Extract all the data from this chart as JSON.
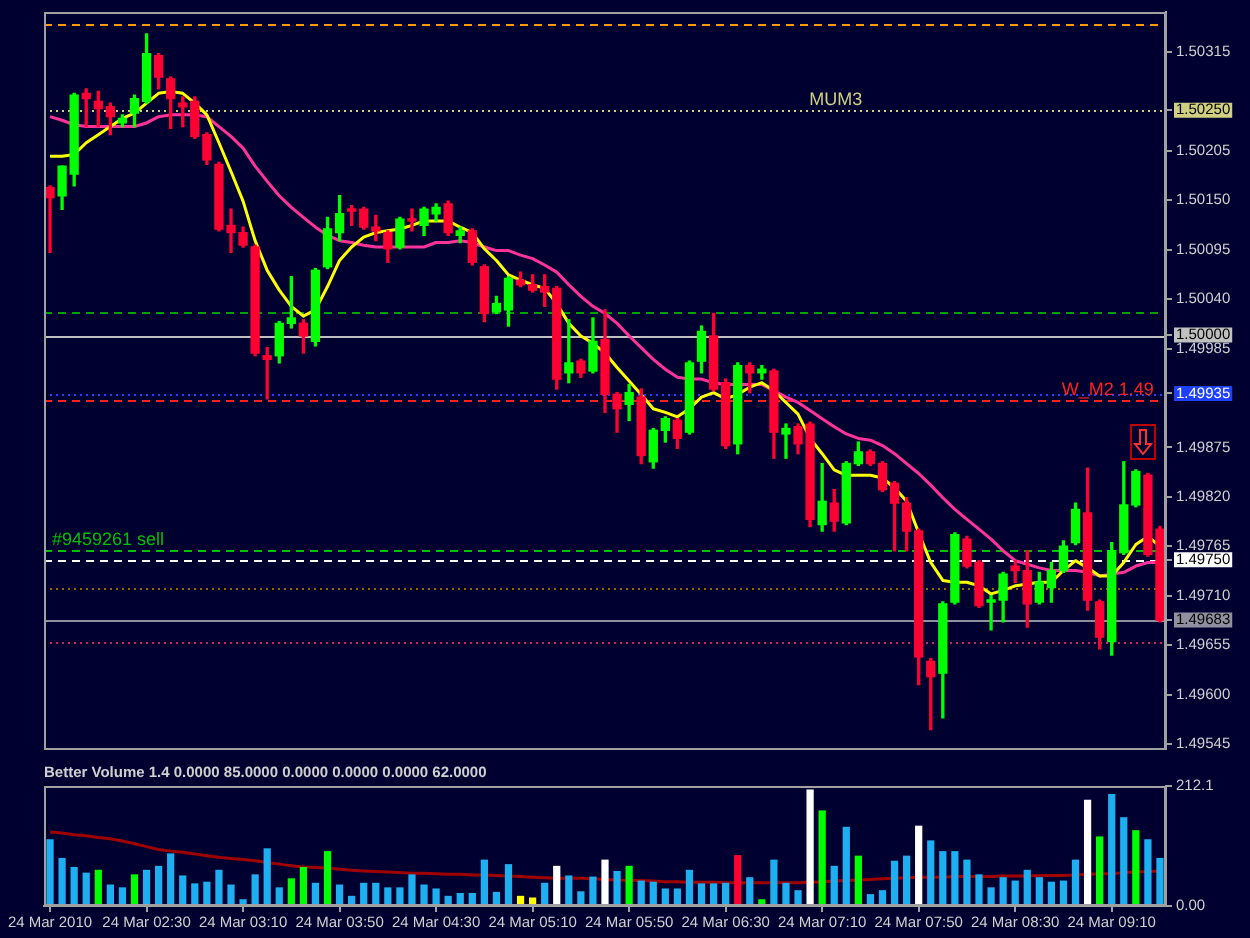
{
  "chart_data": [
    {
      "type": "candlestick",
      "categories": [
        null,
        null,
        null,
        null,
        null,
        null,
        null,
        null,
        null,
        null,
        null,
        null,
        null,
        null,
        null,
        null,
        null,
        null,
        null,
        null,
        null,
        null,
        null,
        null,
        null,
        null,
        null,
        null,
        null,
        null,
        null,
        null,
        null,
        null,
        null,
        null,
        null,
        null,
        null,
        null,
        null,
        null,
        null,
        null,
        null,
        null,
        null,
        null,
        null,
        null,
        null,
        null,
        null,
        null,
        null,
        null,
        null,
        null,
        null,
        null,
        null,
        null,
        null,
        null,
        null,
        null,
        null,
        null,
        null,
        null,
        null,
        null,
        null,
        null,
        null,
        null,
        null,
        null,
        null,
        null,
        null,
        null,
        null,
        null,
        null,
        null,
        null,
        null,
        null,
        null,
        null,
        null,
        null
      ],
      "ohlc": [
        [
          1.50164,
          1.50166,
          1.50092,
          1.50153
        ],
        [
          1.50155,
          1.50188,
          1.5014,
          1.50188
        ],
        [
          1.50179,
          1.50269,
          1.50166,
          1.50267
        ],
        [
          1.50269,
          1.50274,
          1.50232,
          1.50263
        ],
        [
          1.5026,
          1.50271,
          1.50232,
          1.50252
        ],
        [
          1.50254,
          1.50258,
          1.50223,
          1.50243
        ],
        [
          1.50236,
          1.50245,
          1.50232,
          1.50241
        ],
        [
          1.50247,
          1.50267,
          1.50232,
          1.50263
        ],
        [
          1.5026,
          1.50335,
          1.50258,
          1.50313
        ],
        [
          1.50311,
          1.50313,
          1.50274,
          1.50287
        ],
        [
          1.50285,
          1.50287,
          1.5023,
          1.50263
        ],
        [
          1.50258,
          1.50265,
          1.50232,
          1.50254
        ],
        [
          1.5026,
          1.50265,
          1.50219,
          1.50221
        ],
        [
          1.50223,
          1.50225,
          1.5019,
          1.50195
        ],
        [
          1.5019,
          1.50192,
          1.50116,
          1.50118
        ],
        [
          1.50122,
          1.5014,
          1.50092,
          1.50114
        ],
        [
          1.50114,
          1.5012,
          1.50098,
          1.501
        ],
        [
          1.50098,
          1.501,
          1.49977,
          1.4998
        ],
        [
          1.49977,
          1.49986,
          1.49929,
          1.49973
        ],
        [
          1.49977,
          1.50015,
          1.49969,
          1.50013
        ],
        [
          1.50013,
          1.50065,
          1.50008,
          1.50019
        ],
        [
          1.50013,
          1.50017,
          1.4998,
          1.49999
        ],
        [
          1.49993,
          1.50074,
          1.49988,
          1.50072
        ],
        [
          1.50076,
          1.50131,
          1.50074,
          1.50118
        ],
        [
          1.50114,
          1.50155,
          1.50105,
          1.50135
        ],
        [
          1.5014,
          1.50144,
          1.50122,
          1.50138
        ],
        [
          1.5014,
          1.50142,
          1.50118,
          1.5012
        ],
        [
          1.5012,
          1.50133,
          1.50105,
          1.50116
        ],
        [
          1.50114,
          1.50116,
          1.50081,
          1.50096
        ],
        [
          1.50098,
          1.50131,
          1.50096,
          1.50129
        ],
        [
          1.50129,
          1.5014,
          1.50116,
          1.50127
        ],
        [
          1.50122,
          1.50142,
          1.50111,
          1.5014
        ],
        [
          1.50135,
          1.50146,
          1.50127,
          1.50142
        ],
        [
          1.50146,
          1.50149,
          1.50111,
          1.50114
        ],
        [
          1.50111,
          1.5012,
          1.50103,
          1.50116
        ],
        [
          1.50116,
          1.50118,
          1.50078,
          1.50081
        ],
        [
          1.50076,
          1.50078,
          1.50015,
          1.50024
        ],
        [
          1.50026,
          1.50043,
          1.50024,
          1.50035
        ],
        [
          1.50028,
          1.50065,
          1.5001,
          1.50063
        ],
        [
          1.50061,
          1.5007,
          1.50054,
          1.50056
        ],
        [
          1.50056,
          1.50067,
          1.50048,
          1.5005
        ],
        [
          1.50054,
          1.50067,
          1.50032,
          1.50048
        ],
        [
          1.50052,
          1.50054,
          1.4994,
          1.49951
        ],
        [
          1.49958,
          1.50017,
          1.49947,
          1.49969
        ],
        [
          1.49971,
          1.49973,
          1.49953,
          1.49958
        ],
        [
          1.4996,
          1.50019,
          1.49958,
          1.49993
        ],
        [
          1.49995,
          1.50028,
          1.49914,
          1.49934
        ],
        [
          1.49934,
          1.49936,
          1.49892,
          1.49918
        ],
        [
          1.49923,
          1.49945,
          1.49905,
          1.49936
        ],
        [
          1.49931,
          1.4994,
          1.49857,
          1.49866
        ],
        [
          1.49859,
          1.49896,
          1.49852,
          1.49894
        ],
        [
          1.49894,
          1.49909,
          1.49881,
          1.49907
        ],
        [
          1.49905,
          1.49907,
          1.49874,
          1.49885
        ],
        [
          1.49892,
          1.49971,
          1.4989,
          1.49969
        ],
        [
          1.49971,
          1.5001,
          1.49958,
          1.50004
        ],
        [
          1.49999,
          1.50024,
          1.49938,
          1.4994
        ],
        [
          1.49947,
          1.49951,
          1.49874,
          1.49877
        ],
        [
          1.49879,
          1.49969,
          1.49868,
          1.49966
        ],
        [
          1.49966,
          1.49969,
          1.49936,
          1.49958
        ],
        [
          1.49958,
          1.49966,
          1.49951,
          1.49962
        ],
        [
          1.4996,
          1.49962,
          1.49863,
          1.49892
        ],
        [
          1.4989,
          1.49901,
          1.49863,
          1.49896
        ],
        [
          1.49898,
          1.49901,
          1.49868,
          1.49879
        ],
        [
          1.49901,
          1.49903,
          1.49787,
          1.49795
        ],
        [
          1.49789,
          1.49857,
          1.49782,
          1.49815
        ],
        [
          1.49813,
          1.49828,
          1.49782,
          1.49793
        ],
        [
          1.49791,
          1.49859,
          1.49789,
          1.49857
        ],
        [
          1.49857,
          1.49881,
          1.49855,
          1.4987
        ],
        [
          1.4987,
          1.49872,
          1.49855,
          1.49857
        ],
        [
          1.49857,
          1.49859,
          1.49826,
          1.49828
        ],
        [
          1.49835,
          1.49837,
          1.4976,
          1.49813
        ],
        [
          1.49813,
          1.49819,
          1.4976,
          1.49782
        ],
        [
          1.49782,
          1.49784,
          1.49611,
          1.49642
        ],
        [
          1.49637,
          1.4964,
          1.49561,
          1.4962
        ],
        [
          1.49624,
          1.49703,
          1.49574,
          1.49701
        ],
        [
          1.49703,
          1.4978,
          1.49701,
          1.49778
        ],
        [
          1.49773,
          1.49776,
          1.49741,
          1.49743
        ],
        [
          1.49747,
          1.49749,
          1.49697,
          1.49699
        ],
        [
          1.49703,
          1.4971,
          1.49672,
          1.49705
        ],
        [
          1.49705,
          1.49736,
          1.49681,
          1.49734
        ],
        [
          1.49743,
          1.49749,
          1.49725,
          1.49738
        ],
        [
          1.49738,
          1.4976,
          1.49675,
          1.49701
        ],
        [
          1.49703,
          1.49736,
          1.49701,
          1.49725
        ],
        [
          1.49719,
          1.49747,
          1.49703,
          1.49738
        ],
        [
          1.49738,
          1.49771,
          1.49736,
          1.49765
        ],
        [
          1.49769,
          1.49813,
          1.49767,
          1.49806
        ],
        [
          1.49802,
          1.49852,
          1.49694,
          1.49705
        ],
        [
          1.49703,
          1.49705,
          1.49651,
          1.49664
        ],
        [
          1.49659,
          1.49769,
          1.49644,
          1.4976
        ],
        [
          1.49758,
          1.49859,
          1.49756,
          1.49811
        ],
        [
          1.49811,
          1.4985,
          1.49809,
          1.49848
        ],
        [
          1.49844,
          1.49846,
          1.49754,
          1.49756
        ],
        [
          1.49784,
          1.49787,
          1.49681,
          1.49683
        ]
      ],
      "colors": [
        "#ff0033",
        "#00ff00",
        "#00ff00",
        "#ff0033",
        "#ff0033",
        "#ff0033",
        "#00ff00",
        "#00ff00",
        "#00ff00",
        "#ff0033",
        "#ff0033",
        "#ff0033",
        "#ff0033",
        "#ff0033",
        "#ff0033",
        "#ff0033",
        "#ff0033",
        "#ff0033",
        "#ff0033",
        "#00ff00",
        "#00ff00",
        "#ff0033",
        "#00ff00",
        "#00ff00",
        "#00ff00",
        "#ff0033",
        "#ff0033",
        "#ff0033",
        "#ff0033",
        "#00ff00",
        "#ff0033",
        "#00ff00",
        "#00ff00",
        "#ff0033",
        "#00ff00",
        "#ff0033",
        "#ff0033",
        "#00ff00",
        "#00ff00",
        "#ff0033",
        "#ff0033",
        "#ff0033",
        "#ff0033",
        "#00ff00",
        "#ff0033",
        "#00ff00",
        "#ff0033",
        "#ff0033",
        "#00ff00",
        "#ff0033",
        "#00ff00",
        "#00ff00",
        "#ff0033",
        "#00ff00",
        "#00ff00",
        "#ff0033",
        "#ff0033",
        "#00ff00",
        "#ff0033",
        "#00ff00",
        "#ff0033",
        "#00ff00",
        "#ff0033",
        "#ff0033",
        "#00ff00",
        "#ff0033",
        "#00ff00",
        "#00ff00",
        "#ff0033",
        "#ff0033",
        "#ff0033",
        "#ff0033",
        "#ff0033",
        "#ff0033",
        "#00ff00",
        "#00ff00",
        "#ff0033",
        "#ff0033",
        "#00ff00",
        "#00ff00",
        "#ff0033",
        "#ff0033",
        "#00ff00",
        "#00ff00",
        "#00ff00",
        "#00ff00",
        "#ff0033",
        "#ff0033",
        "#00ff00",
        "#00ff00",
        "#00ff00",
        "#ff0033",
        "#ff0033"
      ],
      "series": [
        {
          "type": "line",
          "color": "#ffff00",
          "values": [
            1.50199,
            1.50199,
            1.50201,
            1.50214,
            1.50223,
            1.50232,
            1.50241,
            1.50247,
            1.50258,
            1.50269,
            1.50271,
            1.50269,
            1.50258,
            1.50245,
            1.50214,
            1.50182,
            1.50149,
            1.50105,
            1.50072,
            1.5005,
            1.50032,
            1.50021,
            1.50028,
            1.50054,
            1.50083,
            1.50098,
            1.50109,
            1.50114,
            1.50116,
            1.50118,
            1.50122,
            1.50127,
            1.50127,
            1.50127,
            1.5012,
            1.50114,
            1.50096,
            1.50083,
            1.50067,
            1.50061,
            1.50056,
            1.50052,
            1.50035,
            1.50013,
            1.49999,
            1.49991,
            1.4998,
            1.49964,
            1.49949,
            1.49934,
            1.49918,
            1.49914,
            1.49909,
            1.49918,
            1.49931,
            1.49936,
            1.49929,
            1.49934,
            1.49942,
            1.49947,
            1.49938,
            1.49925,
            1.49912,
            1.49885,
            1.49868,
            1.4985,
            1.49844,
            1.49844,
            1.49844,
            1.49841,
            1.4983,
            1.49815,
            1.4978,
            1.49747,
            1.49727,
            1.49725,
            1.49725,
            1.49721,
            1.49712,
            1.49716,
            1.49721,
            1.49723,
            1.49725,
            1.49725,
            1.49738,
            1.49749,
            1.49741,
            1.49732,
            1.49732,
            1.49747,
            1.49767,
            1.49776,
            1.49765
          ]
        },
        {
          "type": "line",
          "color": "#ff3399",
          "values": [
            1.50243,
            1.50239,
            1.50234,
            1.50232,
            1.50232,
            1.50232,
            1.50232,
            1.50232,
            1.50236,
            1.50243,
            1.50245,
            1.50245,
            1.50245,
            1.50243,
            1.50232,
            1.50221,
            1.50208,
            1.50188,
            1.50171,
            1.50155,
            1.50142,
            1.50131,
            1.5012,
            1.50111,
            1.50105,
            1.50103,
            1.501,
            1.50098,
            1.50098,
            1.50098,
            1.50098,
            1.50098,
            1.50103,
            1.50103,
            1.50105,
            1.50103,
            1.50098,
            1.50094,
            1.50094,
            1.50089,
            1.50085,
            1.50078,
            1.5007,
            1.50056,
            1.50043,
            1.50032,
            1.50024,
            1.50013,
            1.49999,
            1.49986,
            1.49973,
            1.49962,
            1.49953,
            1.49951,
            1.49951,
            1.49947,
            1.49945,
            1.49945,
            1.49945,
            1.49945,
            1.49938,
            1.49931,
            1.49925,
            1.49916,
            1.49907,
            1.49898,
            1.4989,
            1.49885,
            1.49883,
            1.49877,
            1.49868,
            1.49857,
            1.49846,
            1.49833,
            1.49819,
            1.49806,
            1.49795,
            1.49784,
            1.49773,
            1.4976,
            1.49749,
            1.49745,
            1.49741,
            1.49738,
            1.49738,
            1.49738,
            1.49736,
            1.49732,
            1.49734,
            1.49736,
            1.49743,
            1.49747,
            1.49747
          ]
        }
      ],
      "ylim": [
        1.4954,
        1.5036
      ],
      "yticks": [
        1.50315,
        {
          "value": 1.5025,
          "label": "1.50250"
        },
        1.50205,
        {
          "value": 1.5015,
          "label": "1.50150"
        },
        1.50095,
        {
          "value": 1.5004,
          "label": "1.50040"
        },
        {
          "value": 1.5,
          "label": "1.50000"
        },
        1.49985,
        1.49935,
        1.49875,
        {
          "value": 1.4982,
          "label": "1.49820"
        },
        1.49765,
        {
          "value": 1.4975,
          "label": "1.49750"
        },
        {
          "value": 1.4971,
          "label": "1.49710"
        },
        1.49683,
        1.49655,
        {
          "value": 1.496,
          "label": "1.49600"
        },
        1.49545
      ],
      "ref_lines": [
        {
          "axis": "y",
          "value": 1.50345,
          "color": "#ff9900",
          "line_style": "dashed"
        },
        {
          "axis": "y",
          "value": 1.5025,
          "label": "MUM3",
          "color": "#d0d080",
          "line_style": "dotted"
        },
        {
          "axis": "y",
          "value": 1.50025,
          "color": "#00a000",
          "line_style": "dashed"
        },
        {
          "axis": "y",
          "value": 1.5,
          "color": "#c0c0c0",
          "line_style": "solid"
        },
        {
          "axis": "y",
          "value": 1.49935,
          "color": "#2040ff",
          "line_style": "dotted"
        },
        {
          "axis": "y",
          "value": 1.49928,
          "label": "W_M2 1.49",
          "color": "#ff2020",
          "line_style": "dashed"
        },
        {
          "axis": "y",
          "value": 1.49761,
          "label": "#9459261 sell",
          "color": "#00c000",
          "line_style": "dashed"
        },
        {
          "axis": "y",
          "value": 1.4975,
          "color": "#ffffff",
          "line_style": "dashed"
        },
        {
          "axis": "y",
          "value": 1.49719,
          "color": "#a06400",
          "line_style": "dotted"
        },
        {
          "axis": "y",
          "value": 1.49683,
          "color": "#9090a0",
          "line_style": "solid"
        },
        {
          "axis": "y",
          "value": 1.49659,
          "color": "#d02060",
          "line_style": "dotted"
        }
      ],
      "tick_labels": "y"
    },
    {
      "type": "bar",
      "title": "Better Volume 1.4 0.0000 85.0000 0.0000 0.0000 0.0000 62.0000",
      "categories": [
        "24 Mar 2010",
        null,
        null,
        null,
        null,
        null,
        null,
        null,
        "24 Mar 02:30",
        null,
        null,
        null,
        null,
        null,
        null,
        null,
        "24 Mar 03:10",
        null,
        null,
        null,
        null,
        null,
        null,
        null,
        "24 Mar 03:50",
        null,
        null,
        null,
        null,
        null,
        null,
        null,
        "24 Mar 04:30",
        null,
        null,
        null,
        null,
        null,
        null,
        null,
        "24 Mar 05:10",
        null,
        null,
        null,
        null,
        null,
        null,
        null,
        "24 Mar 05:50",
        null,
        null,
        null,
        null,
        null,
        null,
        null,
        "24 Mar 06:30",
        null,
        null,
        null,
        null,
        null,
        null,
        null,
        "24 Mar 07:10",
        null,
        null,
        null,
        null,
        null,
        null,
        null,
        "24 Mar 07:50",
        null,
        null,
        null,
        null,
        null,
        null,
        null,
        "24 Mar 08:30",
        null,
        null,
        null,
        null,
        null,
        null,
        null,
        "24 Mar 09:10",
        null,
        null,
        null,
        null
      ],
      "series": [
        {
          "colors": [
            "#1eaff0",
            "#1eaff0",
            "#1eaff0",
            "#1eaff0",
            "#00ff00",
            "#1eaff0",
            "#1eaff0",
            "#00ff00",
            "#1eaff0",
            "#1eaff0",
            "#1eaff0",
            "#1eaff0",
            "#1eaff0",
            "#1eaff0",
            "#1eaff0",
            "#1eaff0",
            "#1eaff0",
            "#1eaff0",
            "#1eaff0",
            "#1eaff0",
            "#00ff00",
            "#00ff00",
            "#1eaff0",
            "#00ff00",
            "#1eaff0",
            "#1eaff0",
            "#1eaff0",
            "#1eaff0",
            "#1eaff0",
            "#1eaff0",
            "#1eaff0",
            "#1eaff0",
            "#1eaff0",
            "#1eaff0",
            "#1eaff0",
            "#1eaff0",
            "#1eaff0",
            "#1eaff0",
            "#1eaff0",
            "#ffff00",
            "#ffff00",
            "#1eaff0",
            "#ffffff",
            "#1eaff0",
            "#1eaff0",
            "#1eaff0",
            "#ffffff",
            "#1eaff0",
            "#00ff00",
            "#1eaff0",
            "#1eaff0",
            "#1eaff0",
            "#1eaff0",
            "#1eaff0",
            "#1eaff0",
            "#1eaff0",
            "#1eaff0",
            "#ff0033",
            "#1eaff0",
            "#00ff00",
            "#1eaff0",
            "#1eaff0",
            "#1eaff0",
            "#ffffff",
            "#00ff00",
            "#1eaff0",
            "#1eaff0",
            "#00ff00",
            "#1eaff0",
            "#1eaff0",
            "#1eaff0",
            "#1eaff0",
            "#ffffff",
            "#1eaff0",
            "#1eaff0",
            "#1eaff0",
            "#1eaff0",
            "#1eaff0",
            "#1eaff0",
            "#1eaff0",
            "#1eaff0",
            "#1eaff0",
            "#1eaff0",
            "#1eaff0",
            "#1eaff0",
            "#1eaff0",
            "#ffffff",
            "#00ff00",
            "#1eaff0",
            "#1eaff0",
            "#00ff00",
            "#1eaff0",
            "#1eaff0"
          ],
          "values": [
            118,
            85,
            69,
            59,
            64,
            38,
            33,
            56,
            64,
            71,
            93,
            54,
            40,
            43,
            64,
            38,
            12,
            56,
            102,
            33,
            49,
            69,
            41,
            97,
            38,
            18,
            41,
            41,
            33,
            33,
            56,
            38,
            31,
            18,
            23,
            23,
            82,
            25,
            74,
            18,
            15,
            41,
            71,
            54,
            26,
            52,
            82,
            62,
            71,
            45,
            43,
            31,
            31,
            64,
            40,
            40,
            41,
            90,
            51,
            12,
            82,
            41,
            28,
            206,
            169,
            71,
            140,
            89,
            21,
            28,
            80,
            89,
            142,
            116,
            97,
            97,
            82,
            56,
            33,
            51,
            45,
            64,
            51,
            43,
            45,
            82,
            188,
            123,
            198,
            157,
            134,
            118,
            85
          ]
        },
        {
          "type": "line",
          "color": "#a00000",
          "values": [
            131,
            129,
            126,
            124,
            121,
            119,
            115,
            110,
            105,
            100,
            97,
            95,
            92,
            89,
            86,
            84,
            82,
            80,
            77,
            74,
            71,
            69,
            68,
            67,
            65,
            63,
            62,
            61,
            60,
            59,
            58,
            58,
            57,
            56,
            56,
            55,
            55,
            54,
            53,
            52,
            51,
            50,
            49,
            49,
            49,
            48,
            47,
            46,
            45,
            45,
            44,
            43,
            43,
            42,
            42,
            42,
            41,
            41,
            41,
            41,
            41,
            41,
            41,
            42,
            43,
            44,
            45,
            46,
            47,
            48,
            49,
            50,
            51,
            51,
            51,
            52,
            52,
            52,
            52,
            53,
            53,
            53,
            54,
            54,
            54,
            55,
            56,
            57,
            57,
            59,
            60,
            61,
            62
          ]
        }
      ],
      "ylim": [
        0,
        212.1
      ],
      "yticks": [
        212.1,
        {
          "value": 0,
          "label": "0.00"
        }
      ]
    }
  ]
}
